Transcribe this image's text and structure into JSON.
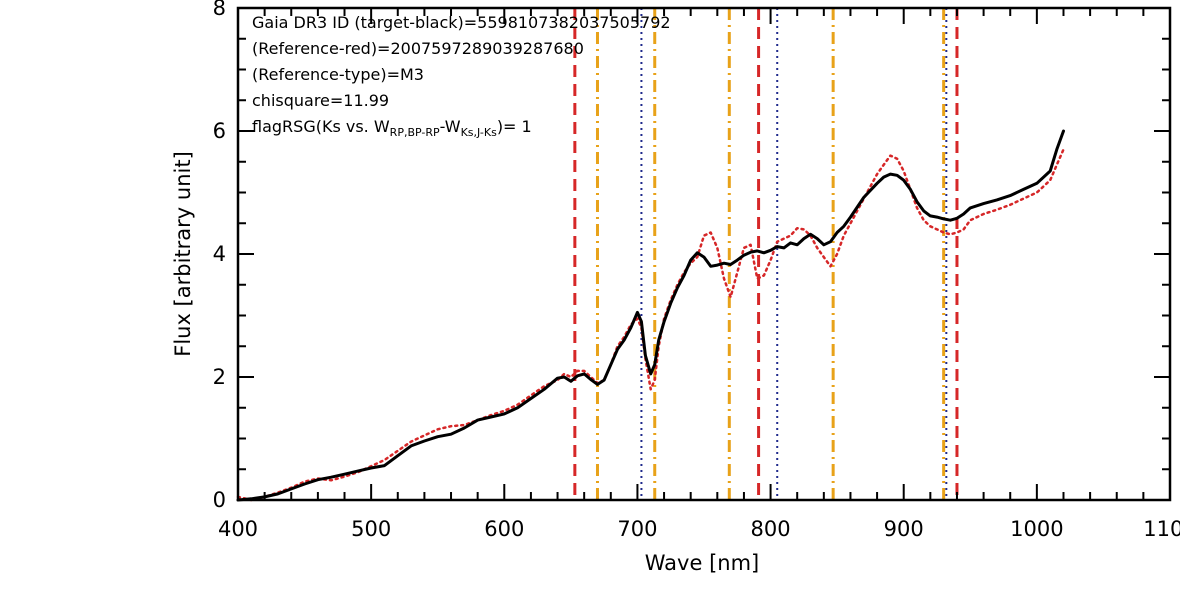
{
  "chart_data": {
    "type": "line",
    "xlabel": "Wave [nm]",
    "ylabel": "Flux [arbitrary unit]",
    "xlim": [
      400,
      1100
    ],
    "ylim": [
      0,
      8
    ],
    "x_ticks": [
      "400",
      "500",
      "600",
      "700",
      "800",
      "900",
      "1000",
      "1100"
    ],
    "y_ticks": [
      "0",
      "2",
      "4",
      "6",
      "8"
    ],
    "grid": false,
    "legend": "none",
    "annotations": [
      "Gaia DR3 ID (target-black)=5598107382037505792",
      "(Reference-red)=2007597289039287680",
      "(Reference-type)=M3",
      "chisquare=11.99"
    ],
    "flag_annotation": {
      "prefix": "flagRSG(Ks vs. W",
      "sub1": "RP,BP-RP",
      "mid": "-W",
      "sub2": "Ks,J-Ks",
      "suffix": ")= 1"
    },
    "series": [
      {
        "color": "#000000",
        "style": "solid",
        "x": [
          400,
          410,
          420,
          430,
          440,
          450,
          460,
          470,
          480,
          490,
          500,
          510,
          520,
          530,
          540,
          550,
          560,
          570,
          580,
          590,
          600,
          610,
          620,
          630,
          640,
          645,
          650,
          655,
          660,
          665,
          670,
          675,
          680,
          685,
          690,
          695,
          700,
          703,
          706,
          710,
          713,
          716,
          720,
          725,
          730,
          735,
          740,
          745,
          750,
          755,
          760,
          765,
          770,
          775,
          780,
          785,
          790,
          795,
          800,
          805,
          810,
          815,
          820,
          825,
          830,
          835,
          840,
          845,
          850,
          855,
          860,
          870,
          880,
          885,
          890,
          895,
          900,
          905,
          910,
          915,
          920,
          925,
          930,
          935,
          940,
          945,
          950,
          960,
          970,
          980,
          990,
          1000,
          1010,
          1015,
          1020
        ],
        "y": [
          0.0,
          0.02,
          0.05,
          0.1,
          0.18,
          0.26,
          0.33,
          0.37,
          0.42,
          0.47,
          0.52,
          0.56,
          0.72,
          0.88,
          0.96,
          1.03,
          1.07,
          1.17,
          1.3,
          1.35,
          1.4,
          1.5,
          1.65,
          1.8,
          1.98,
          2.0,
          1.93,
          2.02,
          2.05,
          1.96,
          1.88,
          1.95,
          2.2,
          2.45,
          2.6,
          2.8,
          3.05,
          2.9,
          2.35,
          2.05,
          2.2,
          2.6,
          2.9,
          3.2,
          3.45,
          3.65,
          3.9,
          4.02,
          3.95,
          3.8,
          3.82,
          3.85,
          3.83,
          3.9,
          3.98,
          4.03,
          4.05,
          4.02,
          4.06,
          4.12,
          4.1,
          4.18,
          4.15,
          4.25,
          4.32,
          4.25,
          4.15,
          4.2,
          4.35,
          4.45,
          4.6,
          4.92,
          5.15,
          5.25,
          5.3,
          5.28,
          5.2,
          5.05,
          4.85,
          4.7,
          4.62,
          4.6,
          4.57,
          4.55,
          4.58,
          4.65,
          4.75,
          4.82,
          4.88,
          4.95,
          5.05,
          5.15,
          5.35,
          5.7,
          6.0
        ]
      },
      {
        "color": "#d62728",
        "style": "dotted",
        "x": [
          400,
          410,
          420,
          430,
          440,
          450,
          460,
          470,
          480,
          490,
          500,
          510,
          520,
          530,
          540,
          550,
          560,
          570,
          580,
          590,
          600,
          610,
          620,
          630,
          640,
          645,
          650,
          655,
          660,
          665,
          670,
          675,
          680,
          685,
          690,
          695,
          700,
          703,
          706,
          710,
          713,
          716,
          720,
          725,
          730,
          735,
          740,
          745,
          750,
          755,
          760,
          765,
          770,
          775,
          780,
          785,
          790,
          795,
          800,
          805,
          810,
          815,
          820,
          825,
          830,
          835,
          840,
          845,
          850,
          855,
          860,
          870,
          880,
          885,
          890,
          895,
          900,
          905,
          910,
          915,
          920,
          925,
          930,
          935,
          940,
          945,
          950,
          960,
          970,
          980,
          990,
          1000,
          1010,
          1015,
          1020
        ],
        "y": [
          0.05,
          0.0,
          0.05,
          0.12,
          0.2,
          0.3,
          0.35,
          0.32,
          0.38,
          0.45,
          0.55,
          0.65,
          0.8,
          0.95,
          1.05,
          1.15,
          1.2,
          1.22,
          1.3,
          1.38,
          1.45,
          1.55,
          1.7,
          1.85,
          1.95,
          2.05,
          2.0,
          2.1,
          2.1,
          2.0,
          1.9,
          1.95,
          2.2,
          2.5,
          2.65,
          2.85,
          2.95,
          2.8,
          2.3,
          1.8,
          1.95,
          2.5,
          2.95,
          3.25,
          3.5,
          3.7,
          3.85,
          3.95,
          4.3,
          4.35,
          4.1,
          3.6,
          3.3,
          3.7,
          4.1,
          4.15,
          3.6,
          3.65,
          3.9,
          4.2,
          4.25,
          4.3,
          4.42,
          4.4,
          4.3,
          4.1,
          3.95,
          3.8,
          4.0,
          4.3,
          4.5,
          4.9,
          5.3,
          5.45,
          5.6,
          5.55,
          5.35,
          5.05,
          4.75,
          4.55,
          4.45,
          4.4,
          4.35,
          4.32,
          4.35,
          4.4,
          4.55,
          4.65,
          4.72,
          4.8,
          4.9,
          5.0,
          5.2,
          5.45,
          5.7
        ]
      }
    ],
    "vlines": [
      {
        "x": 653,
        "color": "#d62728",
        "style": "dashed"
      },
      {
        "x": 670,
        "color": "#e8a219",
        "style": "dashdot"
      },
      {
        "x": 703,
        "color": "#1f2a8c",
        "style": "dotted"
      },
      {
        "x": 713,
        "color": "#e8a219",
        "style": "dashdot"
      },
      {
        "x": 769,
        "color": "#e8a219",
        "style": "dashdot"
      },
      {
        "x": 791,
        "color": "#d62728",
        "style": "dashed"
      },
      {
        "x": 805,
        "color": "#1f2a8c",
        "style": "dotted"
      },
      {
        "x": 847,
        "color": "#e8a219",
        "style": "dashdot"
      },
      {
        "x": 930,
        "color": "#e8a219",
        "style": "dashdot"
      },
      {
        "x": 932,
        "color": "#1f2a8c",
        "style": "dotted"
      },
      {
        "x": 940,
        "color": "#d62728",
        "style": "dashed"
      }
    ]
  }
}
